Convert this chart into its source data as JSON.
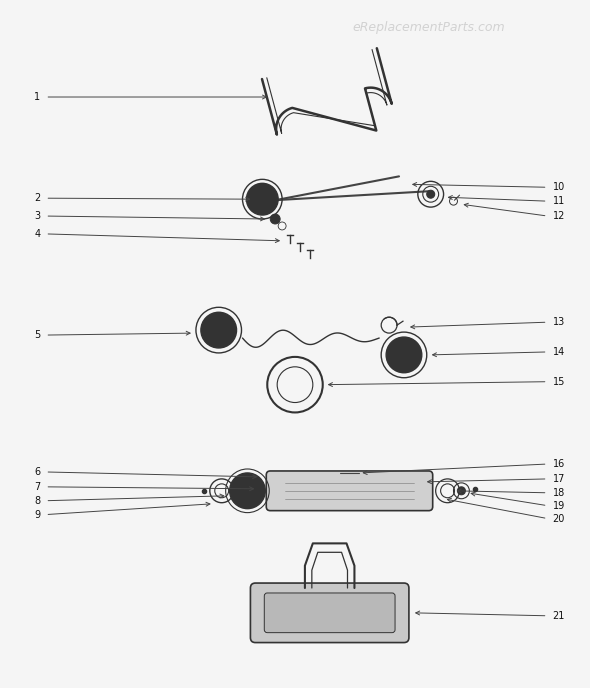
{
  "title": "eReplacementParts.com",
  "bg_color": "#f5f5f5",
  "line_color": "#444444",
  "part_color": "#333333",
  "label_color": "#111111",
  "watermark_color": "#cccccc"
}
